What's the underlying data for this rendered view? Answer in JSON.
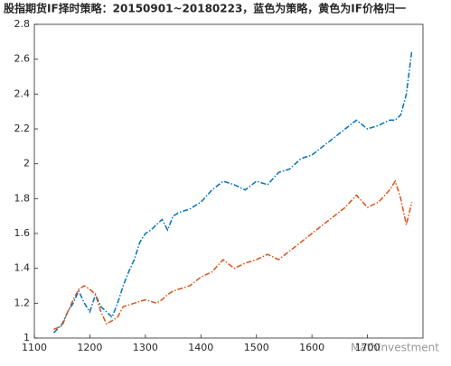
{
  "chart_data": {
    "type": "line",
    "title": "股指期货IF择时策略：20150901~20180223，蓝色为策略，黄色为IF价格归一",
    "watermark": "MathInvestment",
    "x": [
      1135,
      1150,
      1160,
      1170,
      1180,
      1190,
      1200,
      1210,
      1220,
      1230,
      1240,
      1250,
      1260,
      1270,
      1280,
      1290,
      1300,
      1310,
      1320,
      1330,
      1340,
      1350,
      1360,
      1380,
      1400,
      1420,
      1440,
      1460,
      1480,
      1500,
      1520,
      1540,
      1560,
      1580,
      1600,
      1620,
      1640,
      1660,
      1680,
      1700,
      1720,
      1740,
      1750,
      1760,
      1770,
      1780
    ],
    "series": [
      {
        "color": "#0072bd",
        "values": [
          1.03,
          1.08,
          1.15,
          1.2,
          1.27,
          1.2,
          1.15,
          1.25,
          1.18,
          1.15,
          1.12,
          1.2,
          1.3,
          1.38,
          1.45,
          1.55,
          1.6,
          1.62,
          1.65,
          1.68,
          1.62,
          1.7,
          1.72,
          1.74,
          1.78,
          1.85,
          1.9,
          1.88,
          1.85,
          1.9,
          1.88,
          1.95,
          1.97,
          2.03,
          2.05,
          2.1,
          2.15,
          2.2,
          2.25,
          2.2,
          2.22,
          2.25,
          2.25,
          2.28,
          2.4,
          2.65
        ]
      },
      {
        "color": "#d95319",
        "values": [
          1.05,
          1.07,
          1.15,
          1.22,
          1.28,
          1.3,
          1.28,
          1.25,
          1.15,
          1.08,
          1.1,
          1.12,
          1.18,
          1.19,
          1.2,
          1.21,
          1.22,
          1.21,
          1.2,
          1.22,
          1.25,
          1.27,
          1.28,
          1.3,
          1.35,
          1.38,
          1.45,
          1.4,
          1.43,
          1.45,
          1.48,
          1.45,
          1.5,
          1.55,
          1.6,
          1.65,
          1.7,
          1.75,
          1.82,
          1.75,
          1.78,
          1.85,
          1.9,
          1.8,
          1.65,
          1.78
        ]
      }
    ],
    "xlim": [
      1100,
      1800
    ],
    "xticks": [
      1100,
      1200,
      1300,
      1400,
      1500,
      1600,
      1700
    ],
    "ylim": [
      1,
      2.8
    ],
    "yticks": [
      1,
      1.2,
      1.4,
      1.6,
      1.8,
      2,
      2.2,
      2.4,
      2.6,
      2.8
    ],
    "grid": false
  }
}
